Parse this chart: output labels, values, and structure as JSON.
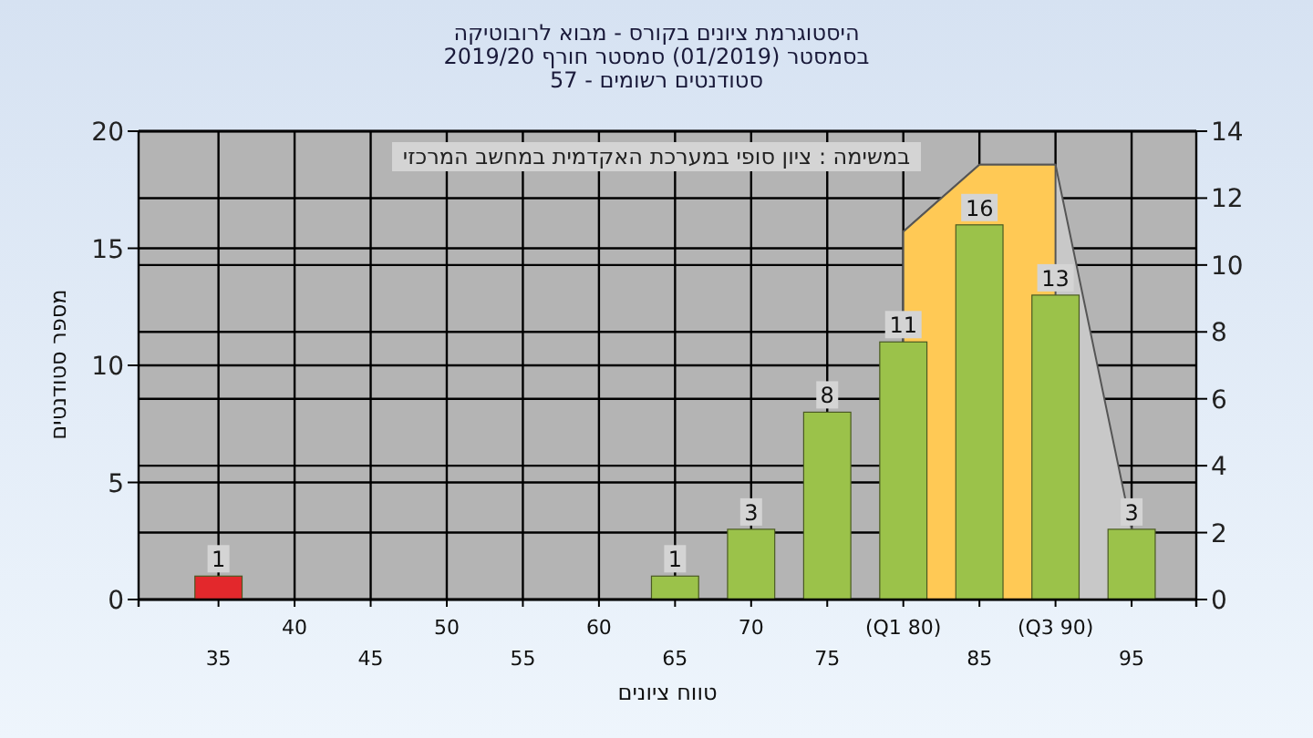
{
  "chart_data": {
    "type": "bar",
    "title": "היסטוגרמת ציונים בקורס - מבוא לרובוטיקה",
    "subtitle": "בסמסטר  (01/2019)  סמסטר חורף 2019/20\nסטודנטים רשומים - 57",
    "xlabel": "טווח ציונים",
    "ylabel": "מספר סטודנטים",
    "annotations": [
      "במשימה : ציון סופי במערכת האקדמית במחשב המרכזי"
    ],
    "categories": [
      "35",
      "40",
      "45",
      "50",
      "55",
      "60",
      "65",
      "70",
      "75",
      "(Q1 80)",
      "85",
      "(Q3 90)",
      "95"
    ],
    "series": [
      {
        "type": "area",
        "axis": "y2",
        "color": "#c8c8c8",
        "values": [
          null,
          null,
          null,
          null,
          null,
          null,
          null,
          null,
          null,
          11,
          13,
          13,
          2.1
        ]
      },
      {
        "type": "area",
        "axis": "y2",
        "color": "#ffc955",
        "values": [
          null,
          null,
          null,
          null,
          null,
          null,
          null,
          null,
          null,
          11,
          13,
          13,
          null
        ]
      },
      {
        "colors": [
          "#e3282c",
          null,
          null,
          null,
          null,
          null,
          "#9bc24a",
          "#9bc24a",
          "#9bc24a",
          "#9bc24a",
          "#9bc24a",
          "#9bc24a",
          "#9bc24a"
        ],
        "values": [
          1,
          null,
          null,
          null,
          null,
          null,
          1,
          3,
          8,
          11,
          16,
          13,
          3
        ],
        "value_labels": [
          "1",
          null,
          null,
          null,
          null,
          null,
          "1",
          "3",
          "8",
          "11",
          "16",
          "13",
          "3"
        ]
      }
    ],
    "ylim": [
      0,
      20
    ],
    "yticks": [
      0,
      5,
      10,
      15,
      20
    ],
    "y2lim": [
      0,
      14
    ],
    "y2ticks": [
      0,
      2,
      4,
      6,
      8,
      10,
      12,
      14
    ],
    "grid": true
  }
}
